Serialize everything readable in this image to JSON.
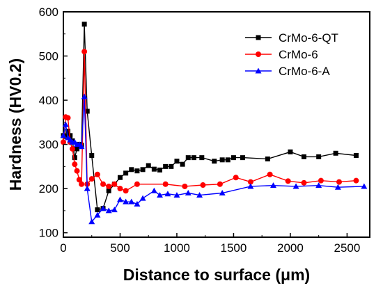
{
  "chart_data": {
    "type": "line",
    "title": "",
    "xlabel": "Distance to surface (μm)",
    "ylabel": "Hardness (HV0.2)",
    "xlim": [
      0,
      2700
    ],
    "ylim": [
      90,
      600
    ],
    "xticks": [
      0,
      500,
      1000,
      1500,
      2000,
      2500
    ],
    "yticks": [
      100,
      200,
      300,
      400,
      500,
      600
    ],
    "xtick_labels": [
      "0",
      "500",
      "1000",
      "1500",
      "2000",
      "2500"
    ],
    "ytick_labels": [
      "100",
      "200",
      "300",
      "400",
      "500",
      "600"
    ],
    "grid": false,
    "legend_position": "top-right",
    "series": [
      {
        "name": "CrMo-6-QT",
        "color": "#000000",
        "marker": "square",
        "x": [
          0,
          20,
          40,
          60,
          80,
          100,
          120,
          140,
          160,
          185,
          210,
          250,
          300,
          350,
          400,
          450,
          500,
          550,
          600,
          650,
          700,
          750,
          800,
          850,
          900,
          950,
          1000,
          1050,
          1100,
          1150,
          1220,
          1330,
          1400,
          1450,
          1500,
          1580,
          1800,
          2000,
          2120,
          2250,
          2400,
          2580
        ],
        "y": [
          320,
          318,
          330,
          320,
          308,
          270,
          290,
          300,
          298,
          572,
          375,
          275,
          152,
          155,
          195,
          210,
          225,
          235,
          243,
          240,
          243,
          252,
          244,
          242,
          250,
          250,
          262,
          255,
          270,
          270,
          270,
          262,
          265,
          265,
          270,
          270,
          267,
          283,
          272,
          272,
          280,
          275
        ]
      },
      {
        "name": "CrMo-6",
        "color": "#ff0000",
        "marker": "circle",
        "x": [
          0,
          20,
          40,
          60,
          80,
          100,
          120,
          140,
          160,
          185,
          210,
          250,
          300,
          350,
          400,
          450,
          500,
          550,
          650,
          900,
          1070,
          1230,
          1380,
          1520,
          1650,
          1820,
          1980,
          2120,
          2270,
          2430,
          2580
        ],
        "y": [
          305,
          362,
          360,
          305,
          290,
          255,
          240,
          220,
          210,
          510,
          210,
          222,
          232,
          210,
          205,
          210,
          200,
          195,
          210,
          210,
          205,
          208,
          210,
          225,
          215,
          232,
          217,
          213,
          218,
          215,
          218
        ]
      },
      {
        "name": "CrMo-6-A",
        "color": "#0000ff",
        "marker": "triangle",
        "x": [
          0,
          20,
          40,
          60,
          80,
          100,
          120,
          140,
          160,
          185,
          210,
          250,
          300,
          350,
          400,
          450,
          500,
          550,
          600,
          650,
          700,
          800,
          850,
          920,
          1000,
          1100,
          1200,
          1400,
          1650,
          1850,
          2050,
          2250,
          2420,
          2650
        ],
        "y": [
          320,
          345,
          315,
          310,
          305,
          305,
          300,
          300,
          295,
          408,
          200,
          125,
          140,
          155,
          150,
          152,
          175,
          170,
          170,
          165,
          178,
          195,
          185,
          188,
          185,
          190,
          185,
          190,
          205,
          207,
          205,
          207,
          203,
          205
        ]
      }
    ]
  }
}
